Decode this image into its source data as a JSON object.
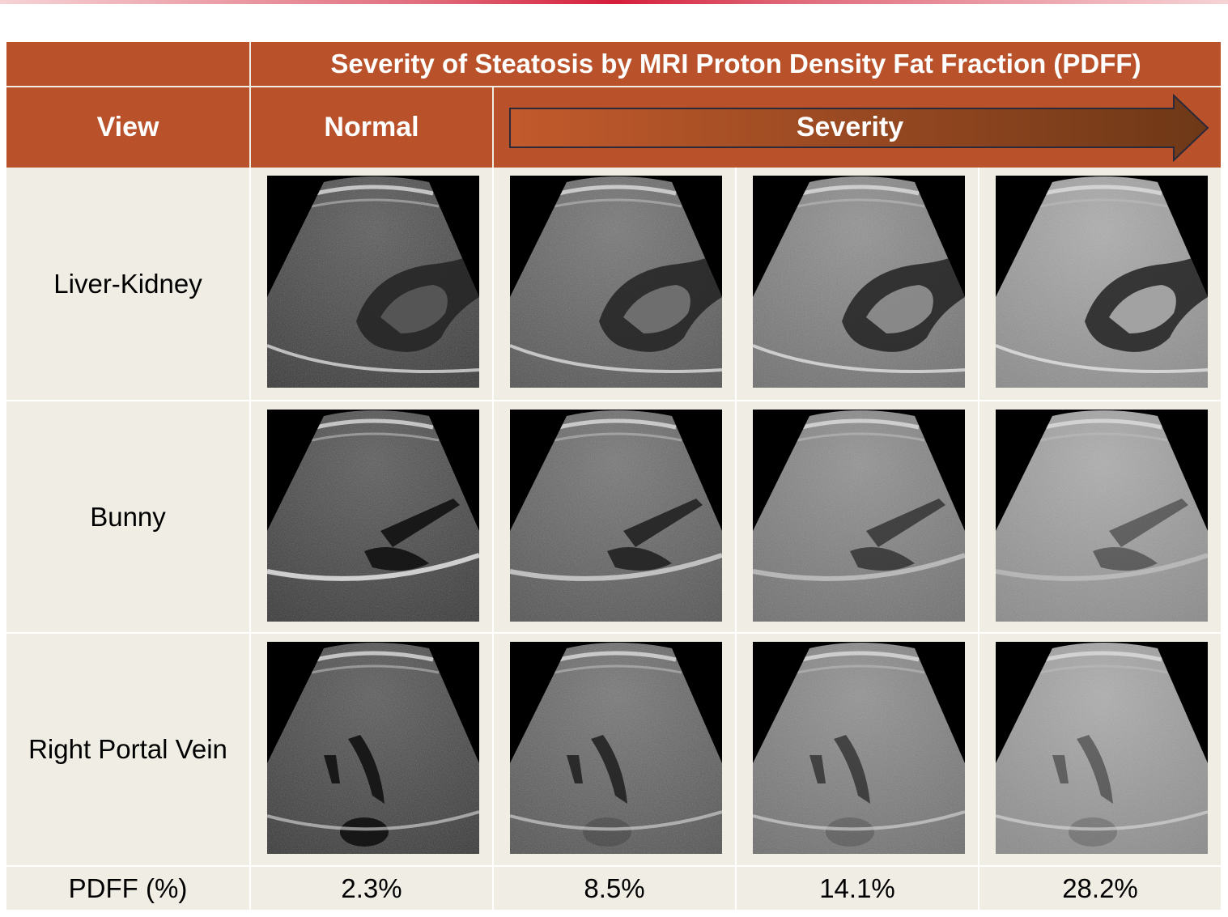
{
  "header": {
    "title": "Severity of Steatosis by MRI Proton Density Fat Fraction (PDFF)",
    "view_label": "View",
    "normal_label": "Normal",
    "severity_label": "Severity"
  },
  "rows": [
    {
      "label": "Liver-Kidney"
    },
    {
      "label": "Bunny"
    },
    {
      "label": "Right Portal Vein"
    }
  ],
  "footer": {
    "label": "PDFF (%)",
    "values": [
      "2.3%",
      "8.5%",
      "14.1%",
      "28.2%"
    ]
  },
  "colors": {
    "header_bg": "#b9512a",
    "body_bg": "#f0ede4",
    "accent_bar": "#d51e3a"
  }
}
